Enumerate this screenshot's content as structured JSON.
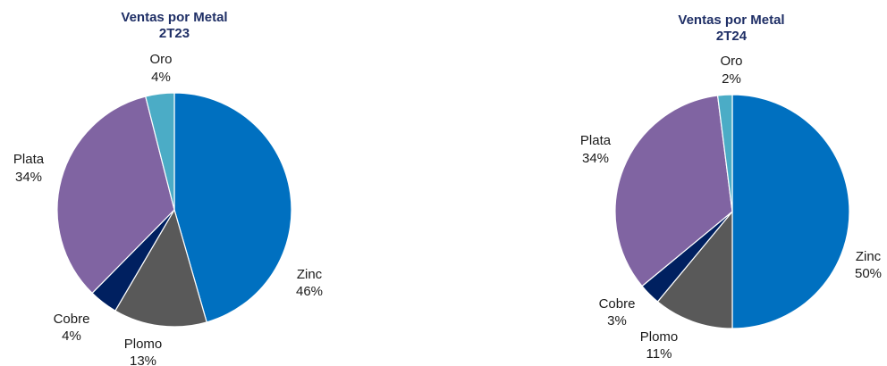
{
  "chart_data": [
    {
      "type": "pie",
      "title": "Ventas por Metal",
      "subtitle": "2T23",
      "slices": [
        {
          "name": "Zinc",
          "value": 46,
          "label": "46%",
          "color": "#0070c0"
        },
        {
          "name": "Plomo",
          "value": 13,
          "label": "13%",
          "color": "#595959"
        },
        {
          "name": "Cobre",
          "value": 4,
          "label": "4%",
          "color": "#002060"
        },
        {
          "name": "Plata",
          "value": 34,
          "label": "34%",
          "color": "#8064a2"
        },
        {
          "name": "Oro",
          "value": 4,
          "label": "4%",
          "color": "#4bacc6"
        }
      ]
    },
    {
      "type": "pie",
      "title": "Ventas por Metal",
      "subtitle": "2T24",
      "slices": [
        {
          "name": "Zinc",
          "value": 50,
          "label": "50%",
          "color": "#0070c0"
        },
        {
          "name": "Plomo",
          "value": 11,
          "label": "11%",
          "color": "#595959"
        },
        {
          "name": "Cobre",
          "value": 3,
          "label": "3%",
          "color": "#002060"
        },
        {
          "name": "Plata",
          "value": 34,
          "label": "34%",
          "color": "#8064a2"
        },
        {
          "name": "Oro",
          "value": 2,
          "label": "2%",
          "color": "#4bacc6"
        }
      ]
    }
  ]
}
